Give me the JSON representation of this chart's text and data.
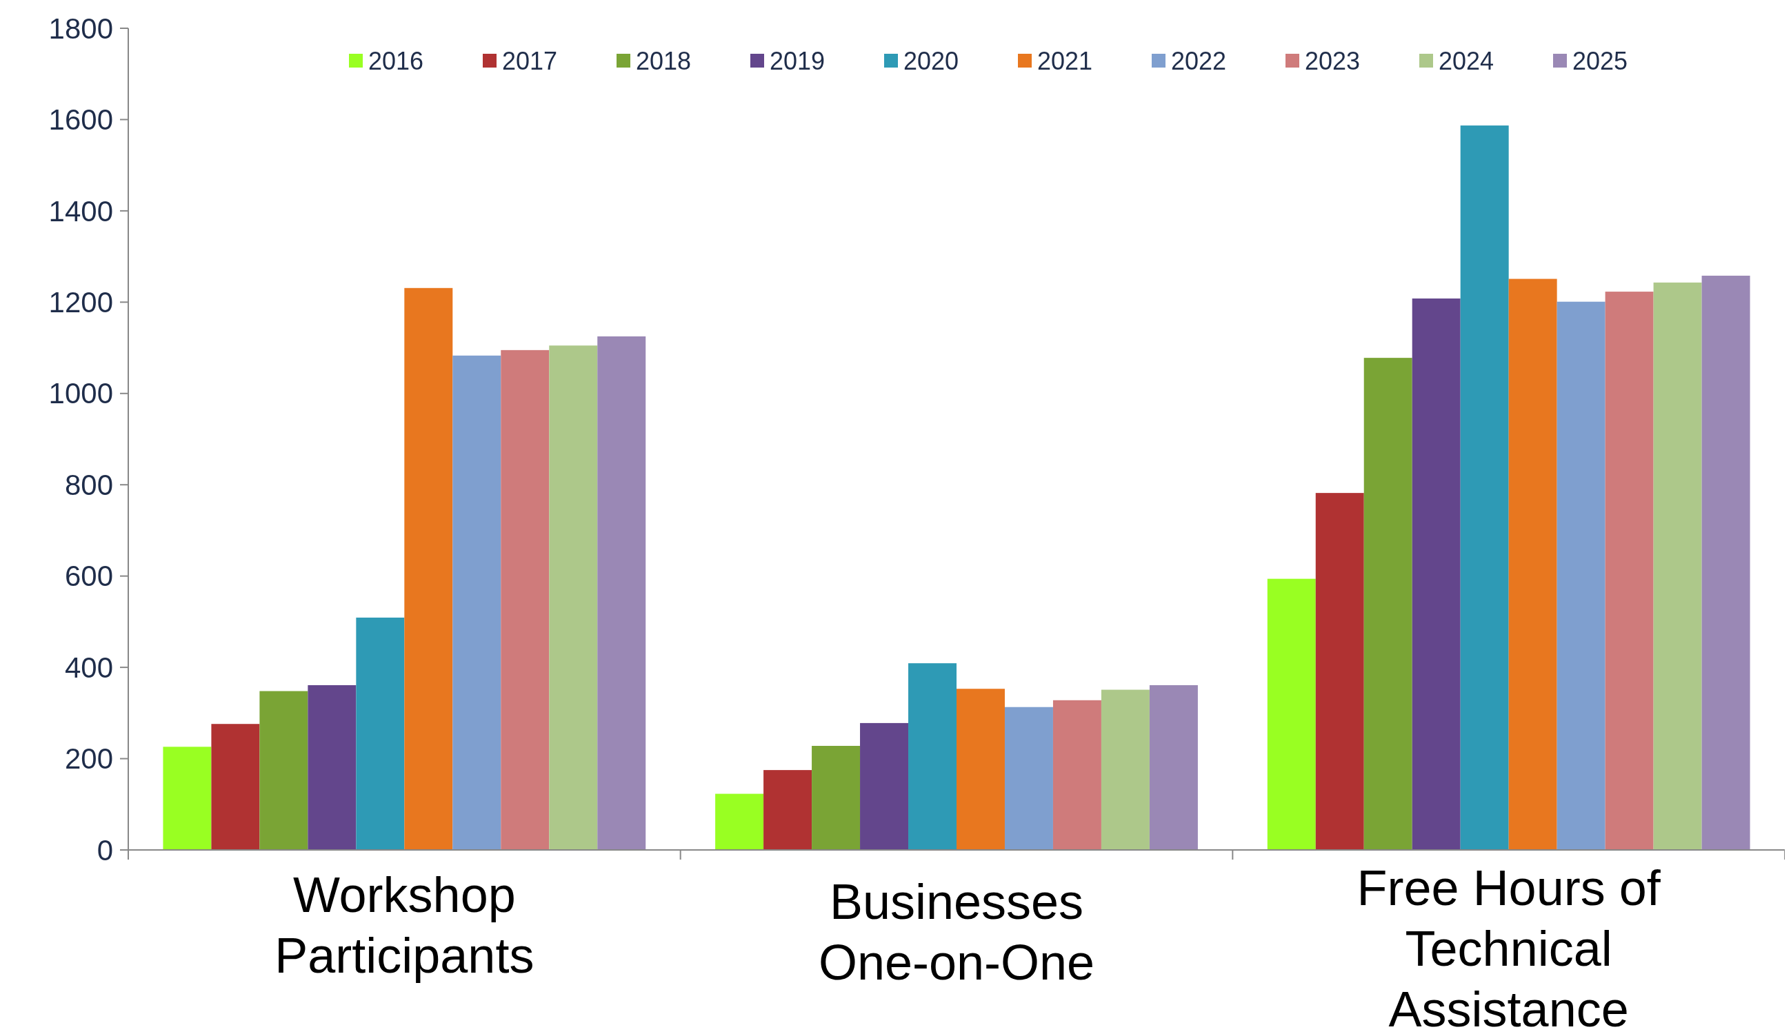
{
  "chart_data": {
    "type": "bar",
    "categories": [
      "Workshop Participants",
      "Businesses One-on-One",
      "Free Hours of Technical Assistance"
    ],
    "series": [
      {
        "name": "2016",
        "color": "#99ff22",
        "values": [
          226,
          123,
          594
        ]
      },
      {
        "name": "2017",
        "color": "#b03232",
        "values": [
          276,
          175,
          782
        ]
      },
      {
        "name": "2018",
        "color": "#7aa435",
        "values": [
          348,
          228,
          1078
        ]
      },
      {
        "name": "2019",
        "color": "#63468c",
        "values": [
          361,
          278,
          1208
        ]
      },
      {
        "name": "2020",
        "color": "#2e9ab5",
        "values": [
          509,
          409,
          1587
        ]
      },
      {
        "name": "2021",
        "color": "#e8771f",
        "values": [
          1231,
          353,
          1251
        ]
      },
      {
        "name": "2022",
        "color": "#7f9fcf",
        "values": [
          1083,
          313,
          1201
        ]
      },
      {
        "name": "2023",
        "color": "#cf7b7b",
        "values": [
          1095,
          328,
          1223
        ]
      },
      {
        "name": "2024",
        "color": "#adc88a",
        "values": [
          1105,
          351,
          1243
        ]
      },
      {
        "name": "2025",
        "color": "#9a88b5",
        "values": [
          1125,
          361,
          1258
        ]
      }
    ],
    "ylim": [
      0,
      1800
    ],
    "yticks": [
      0,
      200,
      400,
      600,
      800,
      1000,
      1200,
      1400,
      1600,
      1800
    ],
    "legend": "top",
    "grid": false
  }
}
